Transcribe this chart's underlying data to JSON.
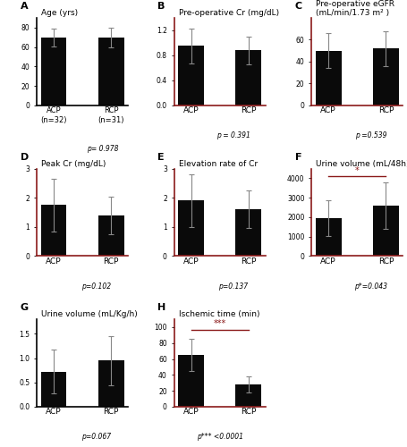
{
  "panels": [
    {
      "label": "A",
      "title": "Age (yrs)",
      "categories": [
        "ACP",
        "RCP"
      ],
      "values": [
        70,
        70
      ],
      "errors": [
        9,
        10
      ],
      "ylim": [
        0,
        90
      ],
      "yticks": [
        0,
        20,
        40,
        60,
        80
      ],
      "ptext": "p= 0.978",
      "extra_labels": [
        "(n=32)",
        "(n=31)"
      ],
      "border_color": "#000000",
      "sig_line": null,
      "p_xalign": 0.72,
      "p_yoffset": -0.45
    },
    {
      "label": "B",
      "title": "Pre-operative Cr (mg/dL)",
      "categories": [
        "ACP",
        "RCP"
      ],
      "values": [
        0.95,
        0.88
      ],
      "errors": [
        0.28,
        0.22
      ],
      "ylim": [
        0,
        1.4
      ],
      "yticks": [
        0,
        0.4,
        0.8,
        1.2
      ],
      "ptext": "p = 0.391",
      "extra_labels": null,
      "border_color": "#8B1A1A",
      "sig_line": null,
      "p_xalign": 0.65,
      "p_yoffset": -0.3
    },
    {
      "label": "C",
      "title": "Pre-operative eGFR\n(mL/min/1.73 m² )",
      "categories": [
        "ACP",
        "RCP"
      ],
      "values": [
        50,
        52
      ],
      "errors": [
        16,
        16
      ],
      "ylim": [
        0,
        80
      ],
      "yticks": [
        0,
        20,
        40,
        60
      ],
      "ptext": "p =0.539",
      "extra_labels": null,
      "border_color": "#8B1A1A",
      "sig_line": null,
      "p_xalign": 0.65,
      "p_yoffset": -0.3
    },
    {
      "label": "D",
      "title": "Peak Cr (mg/dL)",
      "categories": [
        "ACP",
        "RCP"
      ],
      "values": [
        1.75,
        1.4
      ],
      "errors": [
        0.9,
        0.65
      ],
      "ylim": [
        0,
        3
      ],
      "yticks": [
        0,
        1,
        2,
        3
      ],
      "ptext": "p=0.102",
      "extra_labels": null,
      "border_color": "#8B1A1A",
      "sig_line": null,
      "p_xalign": 0.65,
      "p_yoffset": -0.3
    },
    {
      "label": "E",
      "title": "Elevation rate of Cr",
      "categories": [
        "ACP",
        "RCP"
      ],
      "values": [
        1.9,
        1.6
      ],
      "errors": [
        0.9,
        0.65
      ],
      "ylim": [
        0,
        3
      ],
      "yticks": [
        0,
        1,
        2,
        3
      ],
      "ptext": "p=0.137",
      "extra_labels": null,
      "border_color": "#8B1A1A",
      "sig_line": null,
      "p_xalign": 0.65,
      "p_yoffset": -0.3
    },
    {
      "label": "F",
      "title": "Urine volume (mL/48h)",
      "categories": [
        "ACP",
        "RCP"
      ],
      "values": [
        1950,
        2600
      ],
      "errors": [
        900,
        1200
      ],
      "ylim": [
        0,
        4500
      ],
      "yticks": [
        0,
        1000,
        2000,
        3000,
        4000
      ],
      "ptext": "p*=0.043",
      "extra_labels": null,
      "border_color": "#8B1A1A",
      "sig_line": {
        "y": 4100,
        "text": "*",
        "color": "#8B1A1A"
      },
      "p_xalign": 0.65,
      "p_yoffset": -0.3
    },
    {
      "label": "G",
      "title": "Urine volume (mL/Kg/h)",
      "categories": [
        "ACP",
        "RCP"
      ],
      "values": [
        0.72,
        0.95
      ],
      "errors": [
        0.45,
        0.5
      ],
      "ylim": [
        0,
        1.8
      ],
      "yticks": [
        0,
        0.5,
        1.0,
        1.5
      ],
      "ptext": "p=0.067",
      "extra_labels": null,
      "border_color": "#000000",
      "sig_line": null,
      "p_xalign": 0.65,
      "p_yoffset": -0.3
    },
    {
      "label": "H",
      "title": "Ischemic time (min)",
      "categories": [
        "ACP",
        "RCP"
      ],
      "values": [
        65,
        28
      ],
      "errors": [
        20,
        10
      ],
      "ylim": [
        0,
        110
      ],
      "yticks": [
        0,
        20,
        40,
        60,
        80,
        100
      ],
      "ptext": "p*** <0.0001",
      "extra_labels": null,
      "border_color": "#8B1A1A",
      "sig_line": {
        "y": 97,
        "text": "***",
        "color": "#8B1A1A"
      },
      "p_xalign": 0.5,
      "p_yoffset": -0.3
    }
  ],
  "bar_color": "#0a0a0a",
  "error_color": "#888888",
  "bar_width": 0.45
}
